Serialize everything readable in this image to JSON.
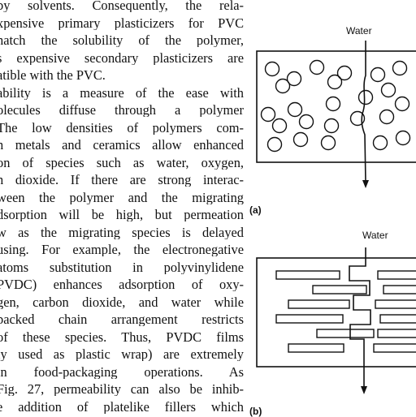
{
  "body_text": [
    "by solvents. Consequently, the rela-",
    "xpensive primary plasticizers for PVC",
    "natch the solubility of the polymer,",
    "s expensive secondary plasticizers are",
    "atible with the PVC.",
    "ability is a measure of the ease with",
    "olecules diffuse through a polymer",
    "The low densities of polymers com-",
    "n metals and ceramics allow enhanced",
    "on of species such as water, oxygen,",
    "n dioxide. If there are strong interac-",
    "ween the polymer and the migrating",
    "dsorption will be high, but permeation",
    "w as the migrating species is delayed",
    "using. For example, the electronegative",
    "atoms substitution in polyvinylidene",
    "PVDC) enhances adsorption of oxy-",
    "gen, carbon dioxide, and water while",
    "packed chain arrangement restricts",
    "of these species. Thus, PVDC films",
    "ly used as plastic wrap) are extremely",
    "in food-packaging operations. As",
    "Fig. 27, permeability can also be inhib-",
    "e addition of platelike fillers which"
  ],
  "figure": {
    "panel_a": {
      "label": "(a)",
      "water_label": "Water"
    },
    "panel_b": {
      "label": "(b)",
      "water_label": "Water"
    }
  }
}
